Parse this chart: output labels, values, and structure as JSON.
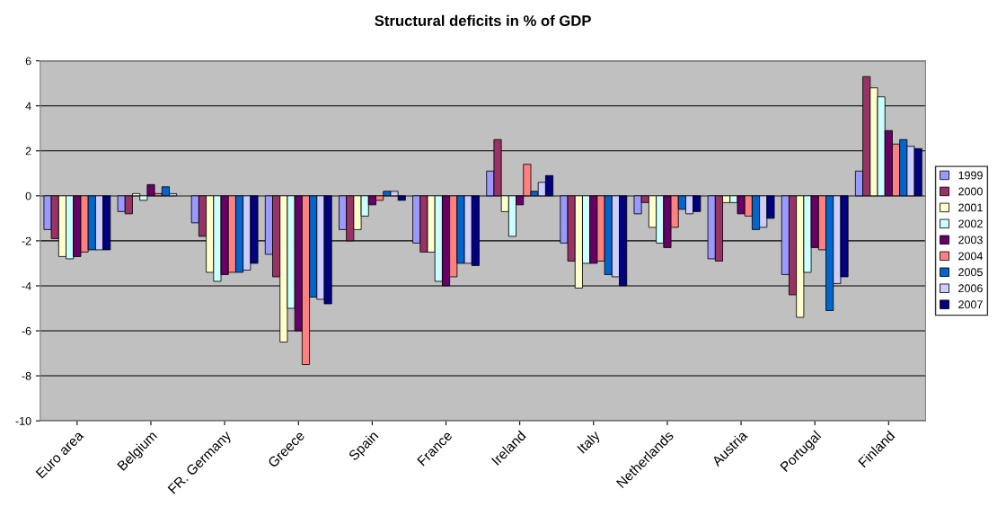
{
  "chart_data": {
    "type": "bar",
    "title": "Structural deficits in % of GDP",
    "categories": [
      "Euro area",
      "Belgium",
      "FR. Germany",
      "Greece",
      "Spain",
      "France",
      "Ireland",
      "Italy",
      "Netherlands",
      "Austria",
      "Portugal",
      "Finland"
    ],
    "series": [
      {
        "name": "1999",
        "color": "#9999ff",
        "values": [
          -1.5,
          -0.7,
          -1.2,
          -2.6,
          -1.5,
          -2.1,
          1.1,
          -2.1,
          -0.8,
          -2.8,
          -3.5,
          1.1
        ]
      },
      {
        "name": "2000",
        "color": "#993366",
        "values": [
          -1.9,
          -0.8,
          -1.8,
          -3.6,
          -2.0,
          -2.5,
          2.5,
          -2.9,
          -0.3,
          -2.9,
          -4.4,
          5.3
        ]
      },
      {
        "name": "2001",
        "color": "#ffffcc",
        "values": [
          -2.7,
          0.1,
          -3.4,
          -6.5,
          -1.5,
          -2.5,
          -0.7,
          -4.1,
          -1.4,
          -0.3,
          -5.4,
          4.8
        ]
      },
      {
        "name": "2002",
        "color": "#ccffff",
        "values": [
          -2.8,
          -0.2,
          -3.8,
          -5.0,
          -0.9,
          -3.8,
          -1.8,
          -3.0,
          -2.1,
          -0.3,
          -3.4,
          4.4
        ]
      },
      {
        "name": "2003",
        "color": "#660066",
        "values": [
          -2.7,
          0.5,
          -3.5,
          -6.0,
          -0.4,
          -4.0,
          -0.4,
          -3.0,
          -2.3,
          -0.8,
          -2.3,
          2.9
        ]
      },
      {
        "name": "2004",
        "color": "#ff8080",
        "values": [
          -2.5,
          0.1,
          -3.4,
          -7.5,
          -0.2,
          -3.6,
          1.4,
          -2.9,
          -1.4,
          -0.9,
          -2.4,
          2.3
        ]
      },
      {
        "name": "2005",
        "color": "#0066cc",
        "values": [
          -2.4,
          0.4,
          -3.4,
          -4.5,
          0.2,
          -3.0,
          0.2,
          -3.5,
          -0.6,
          -1.5,
          -5.1,
          2.5
        ]
      },
      {
        "name": "2006",
        "color": "#ccccff",
        "values": [
          -2.4,
          0.1,
          -3.3,
          -4.6,
          0.2,
          -3.0,
          0.6,
          -3.6,
          -0.8,
          -1.4,
          -3.9,
          2.2
        ]
      },
      {
        "name": "2007",
        "color": "#000080",
        "values": [
          -2.4,
          null,
          -3.0,
          -4.8,
          -0.2,
          -3.1,
          0.9,
          -4.0,
          -0.7,
          -1.0,
          -3.6,
          2.1
        ]
      }
    ],
    "ylim": [
      -10,
      6
    ],
    "yticks": [
      -10,
      -8,
      -6,
      -4,
      -2,
      0,
      2,
      4,
      6
    ],
    "grid": "y",
    "legend": "right"
  }
}
